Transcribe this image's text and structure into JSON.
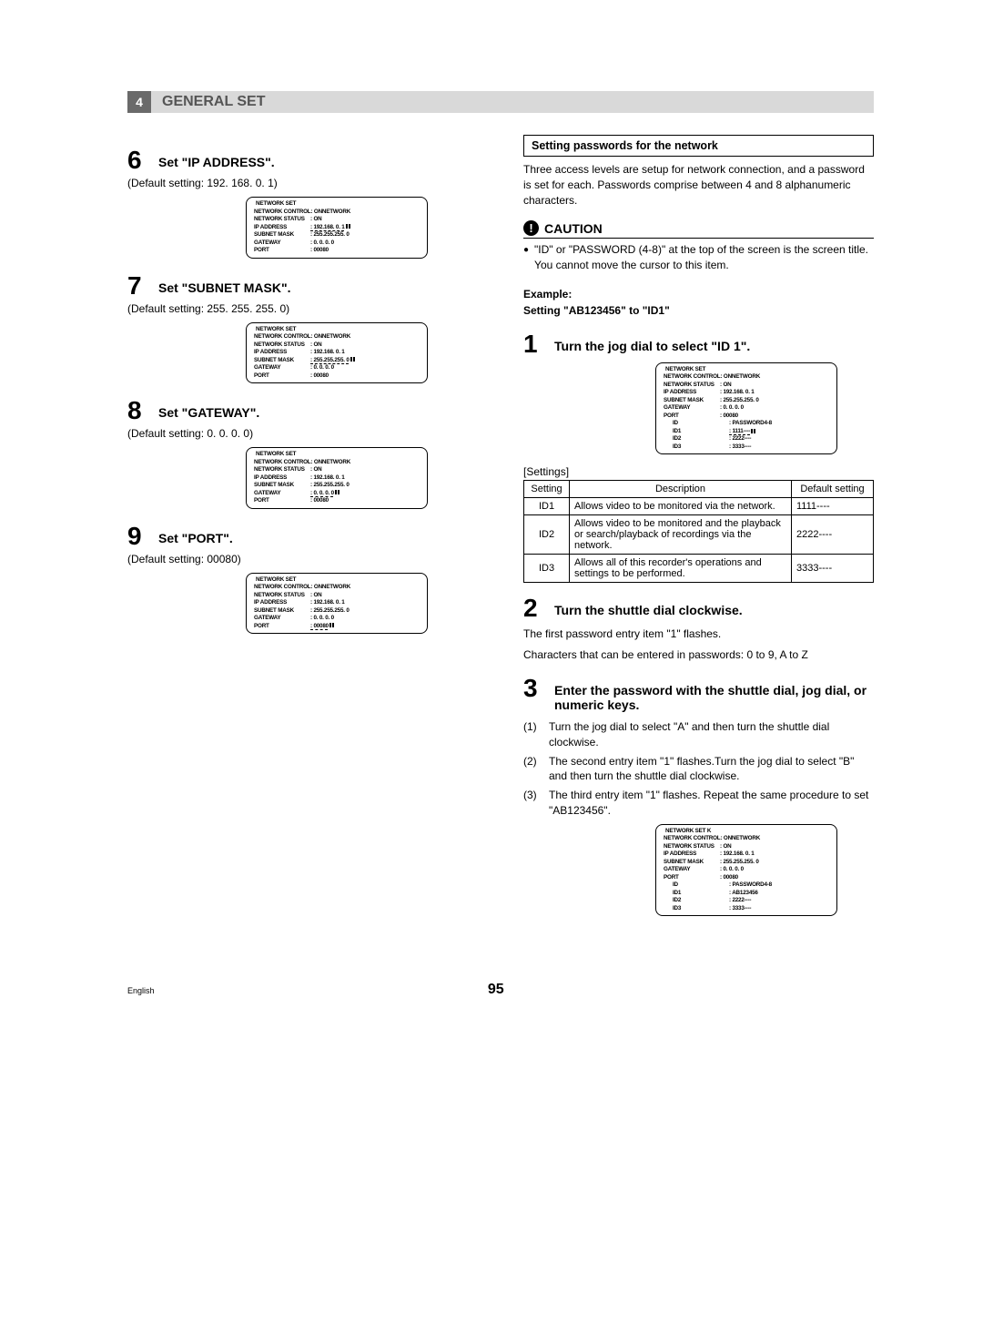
{
  "header": {
    "tab": "4",
    "title": "GENERAL SET"
  },
  "left": {
    "steps": [
      {
        "num": "6",
        "title": "Set \"IP ADDRESS\".",
        "sub": "(Default setting: 192. 168. 0. 1)",
        "menu": {
          "header": "NETWORK SET",
          "rows": [
            {
              "label": "NETWORK CONTROL",
              "value": ": ONNETWORK"
            },
            {
              "label": "NETWORK STATUS",
              "value": ": ON"
            },
            {
              "label": "IP ADDRESS",
              "value": ": 192.168. 0. 1",
              "hilite": true,
              "cursor": true
            },
            {
              "label": "SUBNET MASK",
              "value": ": 255.255.255. 0"
            },
            {
              "label": "GATEWAY",
              "value": ":  0. 0. 0. 0"
            },
            {
              "label": "PORT",
              "value": ": 00080"
            }
          ]
        }
      },
      {
        "num": "7",
        "title": "Set \"SUBNET MASK\".",
        "sub": "(Default setting: 255. 255. 255. 0)",
        "menu": {
          "header": "NETWORK SET",
          "rows": [
            {
              "label": "NETWORK CONTROL",
              "value": ": ONNETWORK"
            },
            {
              "label": "NETWORK STATUS",
              "value": ": ON"
            },
            {
              "label": "IP ADDRESS",
              "value": ": 192.168. 0. 1"
            },
            {
              "label": "SUBNET MASK",
              "value": ": 255.255.255. 0",
              "hilite": true,
              "cursor": true
            },
            {
              "label": "GATEWAY",
              "value": ":  0. 0. 0. 0"
            },
            {
              "label": "PORT",
              "value": ": 00080"
            }
          ]
        }
      },
      {
        "num": "8",
        "title": "Set \"GATEWAY\".",
        "sub": "(Default setting: 0. 0. 0. 0)",
        "menu": {
          "header": "NETWORK SET",
          "rows": [
            {
              "label": "NETWORK CONTROL",
              "value": ": ONNETWORK"
            },
            {
              "label": "NETWORK STATUS",
              "value": ": ON"
            },
            {
              "label": "IP ADDRESS",
              "value": ": 192.168. 0. 1"
            },
            {
              "label": "SUBNET MASK",
              "value": ": 255.255.255. 0"
            },
            {
              "label": "GATEWAY",
              "value": ":  0. 0. 0. 0",
              "hilite": true,
              "cursor": true
            },
            {
              "label": "PORT",
              "value": ": 00080"
            }
          ]
        }
      },
      {
        "num": "9",
        "title": "Set \"PORT\".",
        "sub": "(Default setting: 00080)",
        "menu": {
          "header": "NETWORK SET",
          "rows": [
            {
              "label": "NETWORK CONTROL",
              "value": ": ONNETWORK"
            },
            {
              "label": "NETWORK STATUS",
              "value": ": ON"
            },
            {
              "label": "IP ADDRESS",
              "value": ": 192.168. 0. 1"
            },
            {
              "label": "SUBNET MASK",
              "value": ": 255.255.255. 0"
            },
            {
              "label": "GATEWAY",
              "value": ":  0. 0. 0. 0"
            },
            {
              "label": "PORT",
              "value": ": 00080",
              "hilite": true,
              "cursor": true
            }
          ]
        }
      }
    ]
  },
  "right": {
    "boxTitle": "Setting passwords for the network",
    "intro": "Three access levels are setup for network connection, and a password is set for each. Passwords comprise between 4 and 8 alphanumeric characters.",
    "cautionLabel": "CAUTION",
    "cautionText": "\"ID\" or \"PASSWORD (4-8)\" at the top of the screen is the screen title. You cannot move the cursor to this item.",
    "exampleLabel": "Example:",
    "exampleLine": "Setting \"AB123456\" to \"ID1\"",
    "step1": {
      "num": "1",
      "title": "Turn the jog dial to select \"ID 1\"."
    },
    "menu1": {
      "header": "NETWORK SET",
      "rows": [
        {
          "label": "NETWORK CONTROL",
          "value": ": ONNETWORK"
        },
        {
          "label": "NETWORK STATUS",
          "value": ": ON"
        },
        {
          "label": "IP ADDRESS",
          "value": ": 192.168. 0. 1"
        },
        {
          "label": "SUBNET MASK",
          "value": ": 255.255.255. 0"
        },
        {
          "label": "GATEWAY",
          "value": ":  0. 0. 0. 0"
        },
        {
          "label": "PORT",
          "value": ": 00080"
        }
      ],
      "subheader": {
        "label": "ID",
        "value": ": PASSWORD4-8"
      },
      "idrows": [
        {
          "label": "ID1",
          "value": ": 1111----",
          "hilite": true,
          "cursor": true
        },
        {
          "label": "ID2",
          "value": ": 2222----"
        },
        {
          "label": "ID3",
          "value": ": 3333----"
        }
      ]
    },
    "settingsLabel": "[Settings]",
    "table": {
      "head": [
        "Setting",
        "Description",
        "Default setting"
      ],
      "rows": [
        {
          "id": "ID1",
          "desc": "Allows video to be monitored via the network.",
          "def": "1111----"
        },
        {
          "id": "ID2",
          "desc": "Allows video to be monitored and the playback or search/playback of recordings via the network.",
          "def": "2222----"
        },
        {
          "id": "ID3",
          "desc": "Allows all of this recorder's operations and settings to be performed.",
          "def": "3333----"
        }
      ]
    },
    "step2": {
      "num": "2",
      "title": "Turn the shuttle dial clockwise."
    },
    "step2p1": "The first password entry item \"1\" flashes.",
    "step2p2": "Characters that can be entered in passwords: 0 to 9, A to Z",
    "step3": {
      "num": "3",
      "title": "Enter the password with the shuttle dial, jog dial, or numeric keys."
    },
    "numlist": [
      {
        "n": "(1)",
        "t": "Turn the jog dial to select \"A\" and then turn the shuttle dial clockwise."
      },
      {
        "n": "(2)",
        "t": "The second entry item \"1\" flashes.Turn the jog dial to select \"B\" and then turn the shuttle dial clockwise."
      },
      {
        "n": "(3)",
        "t": "The third entry item \"1\" flashes. Repeat the same procedure to set \"AB123456\"."
      }
    ],
    "menu2": {
      "header": "NETWORK SET      K",
      "rows": [
        {
          "label": "NETWORK CONTROL",
          "value": ": ONNETWORK"
        },
        {
          "label": "NETWORK STATUS",
          "value": ": ON"
        },
        {
          "label": "IP ADDRESS",
          "value": ": 192.168. 0. 1"
        },
        {
          "label": "SUBNET MASK",
          "value": ": 255.255.255. 0"
        },
        {
          "label": "GATEWAY",
          "value": ":  0. 0. 0. 0"
        },
        {
          "label": "PORT",
          "value": ": 00080"
        }
      ],
      "subheader": {
        "label": "ID",
        "value": ": PASSWORD4-8"
      },
      "idrows": [
        {
          "label": "ID1",
          "value": ": AB123456"
        },
        {
          "label": "ID2",
          "value": ": 2222----"
        },
        {
          "label": "ID3",
          "value": ": 3333----"
        }
      ]
    }
  },
  "footer": {
    "lang": "English",
    "page": "95"
  }
}
